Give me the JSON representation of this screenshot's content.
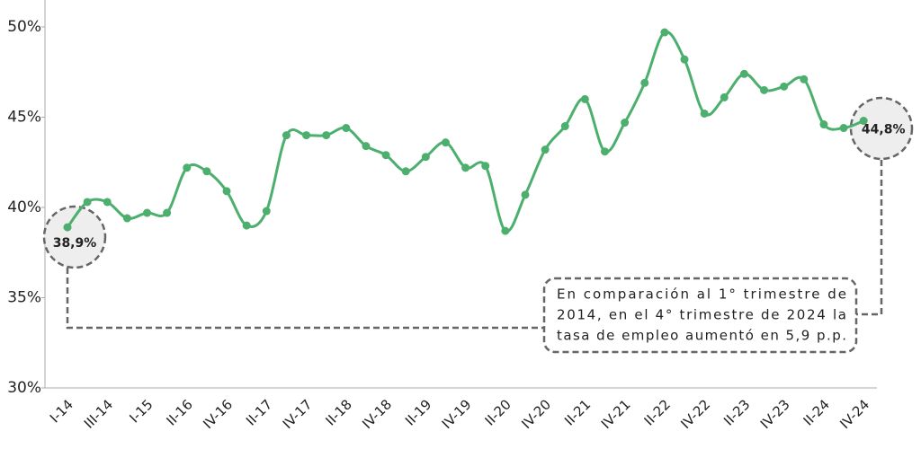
{
  "chart_data": {
    "type": "line",
    "categories": [
      "I-14",
      null,
      "III-14",
      null,
      "I-15",
      null,
      "II-16",
      null,
      "IV-16",
      null,
      "II-17",
      null,
      "IV-17",
      null,
      "II-18",
      null,
      "IV-18",
      null,
      "II-19",
      null,
      "IV-19",
      null,
      "II-20",
      null,
      "IV-20",
      null,
      "II-21",
      null,
      "IV-21",
      null,
      "II-22",
      null,
      "IV-22",
      null,
      "II-23",
      null,
      "IV-23",
      null,
      "II-24",
      null,
      "IV-24"
    ],
    "series": [
      {
        "name": "Tasa de empleo",
        "color": "#4caf6e",
        "values": [
          38.9,
          40.3,
          40.3,
          39.4,
          39.7,
          39.7,
          42.2,
          42.0,
          40.9,
          39.0,
          39.8,
          44.0,
          44.0,
          44.0,
          44.4,
          43.4,
          42.9,
          42.0,
          42.8,
          43.6,
          42.2,
          42.3,
          38.7,
          40.7,
          43.2,
          44.5,
          46.0,
          43.1,
          44.7,
          46.9,
          49.7,
          48.2,
          45.2,
          46.1,
          47.4,
          46.5,
          46.7,
          47.1,
          44.6,
          44.4,
          44.8
        ],
        "value_labels": [
          "38,9%",
          null,
          null,
          null,
          null,
          null,
          null,
          null,
          null,
          null,
          null,
          null,
          null,
          null,
          null,
          null,
          null,
          null,
          null,
          null,
          null,
          null,
          null,
          null,
          null,
          null,
          null,
          null,
          null,
          null,
          null,
          null,
          null,
          null,
          null,
          null,
          null,
          null,
          null,
          null,
          "44,8%"
        ]
      }
    ],
    "ylim": [
      30,
      50
    ],
    "yticks": [
      {
        "value": 30,
        "label": "30%"
      },
      {
        "value": 35,
        "label": "35%"
      },
      {
        "value": 40,
        "label": "40%"
      },
      {
        "value": 45,
        "label": "45%"
      },
      {
        "value": 50,
        "label": "50%"
      }
    ],
    "note": [
      "En comparación al 1° trimestre de",
      "2014, en el 4° trimestre de 2024 la",
      "tasa de empleo aumentó en 5,9 p.p."
    ]
  }
}
